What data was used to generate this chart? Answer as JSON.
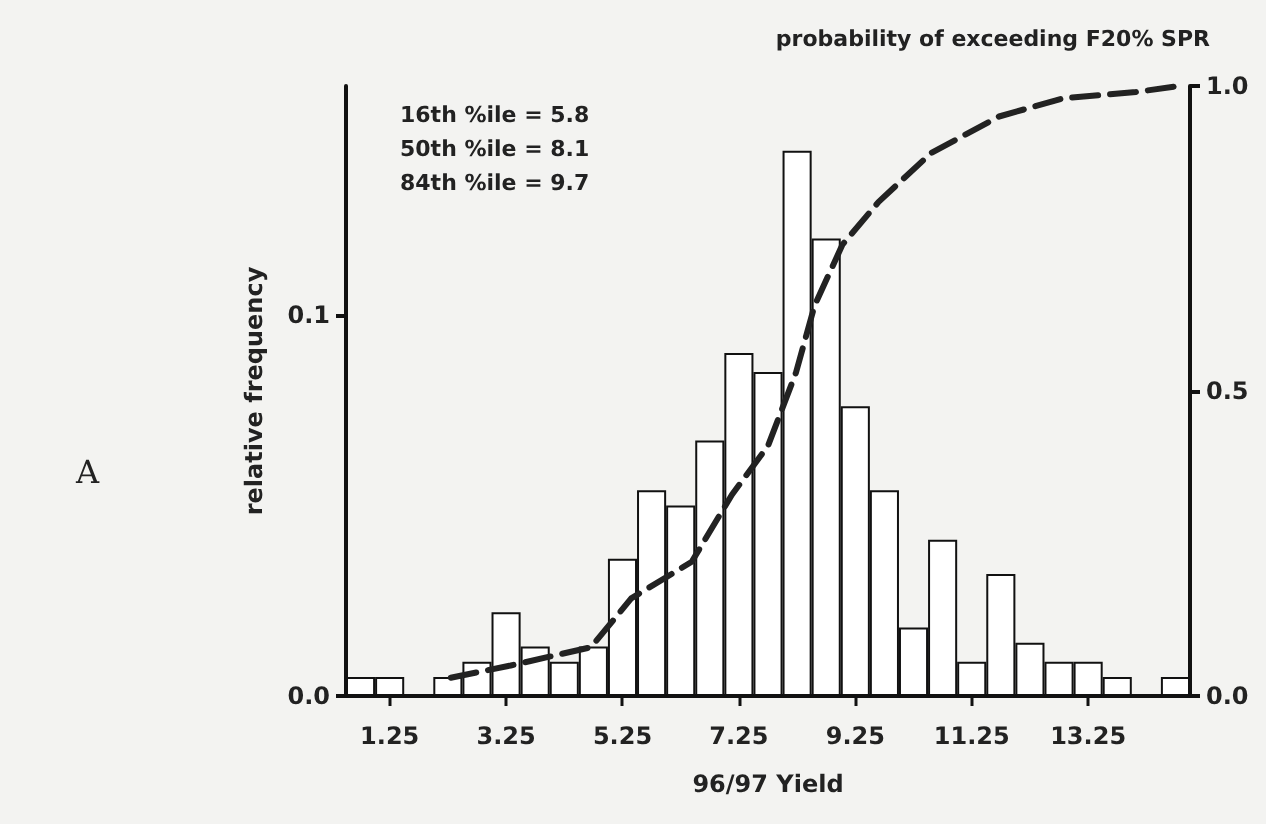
{
  "chart_data": {
    "type": "histogram",
    "xlabel": "96/97 Yield",
    "ylabel": "relative frequency",
    "y2label": "probability of exceeding F20% SPR",
    "annotations": [
      "16th %ile = 5.8",
      "50th %ile = 8.1",
      "84th %ile = 9.7",
      "A"
    ],
    "bins": [
      0.5,
      1.0,
      1.5,
      2.0,
      2.5,
      3.0,
      3.5,
      4.0,
      4.5,
      5.0,
      5.5,
      6.0,
      6.5,
      7.0,
      7.5,
      8.0,
      8.5,
      9.0,
      9.5,
      10.0,
      10.5,
      11.0,
      11.5,
      12.0,
      12.5,
      13.0,
      13.5,
      14.0,
      14.5,
      15.0
    ],
    "series": [
      {
        "type": "histogram",
        "color": "#ffffff",
        "values": [
          0.005,
          0.005,
          0,
          0.005,
          0.009,
          0.022,
          0.013,
          0.009,
          0.013,
          0.036,
          0.054,
          0.05,
          0.067,
          0.09,
          0.085,
          0.143,
          0.12,
          0.076,
          0.054,
          0.018,
          0.041,
          0.009,
          0.032,
          0.014,
          0.009,
          0.009,
          0.005,
          0,
          0.005
        ]
      },
      {
        "type": "line",
        "axis": "y2",
        "color": "#222222",
        "line_style": "dashed",
        "marker": "none",
        "x": [
          2.3,
          3.33,
          4.71,
          5.4,
          6.44,
          7.13,
          7.75,
          8.23,
          8.55,
          9.03,
          9.65,
          10.55,
          11.72,
          12.83,
          14.07,
          14.8
        ],
        "values": [
          0.03,
          0.05,
          0.08,
          0.16,
          0.22,
          0.33,
          0.41,
          0.53,
          0.64,
          0.74,
          0.81,
          0.89,
          0.95,
          0.98,
          0.99,
          1.0
        ]
      }
    ],
    "xlim": [
      0.5,
      15.0
    ],
    "xticks": [
      1.25,
      3.25,
      5.25,
      7.25,
      9.25,
      11.25,
      13.25
    ],
    "ylim": [
      0,
      0.16
    ],
    "yticks": [
      {
        "value": 0,
        "label": "0.0"
      },
      {
        "value": 0.1,
        "label": "0.1"
      }
    ],
    "y2lim": [
      0,
      1.0
    ],
    "y2ticks": [
      {
        "value": 0,
        "label": "0.0"
      },
      {
        "value": 0.5,
        "label": "0.5"
      },
      {
        "value": 1.0,
        "label": "1.0"
      }
    ],
    "grid": false
  }
}
